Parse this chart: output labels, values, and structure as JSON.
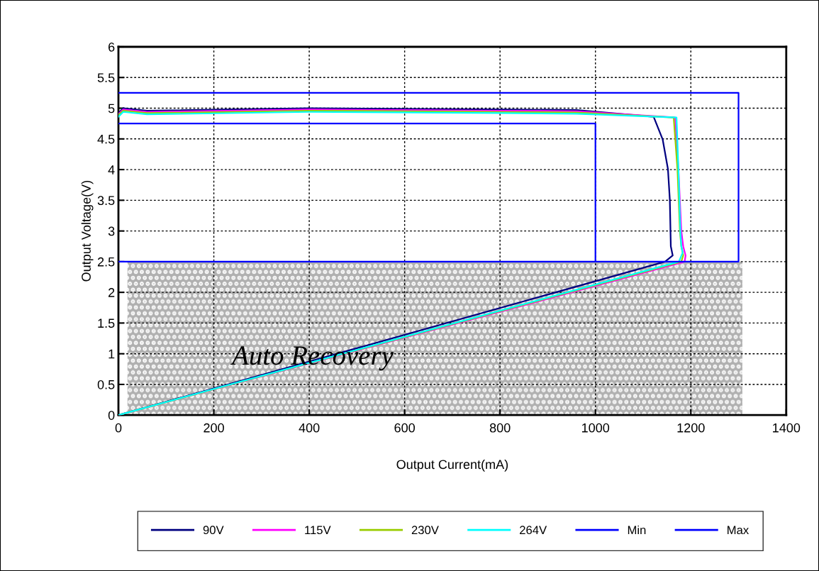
{
  "chart_data": {
    "type": "line",
    "xlabel": "Output Current(mA)",
    "ylabel": "Output Voltage(V)",
    "xlim": [
      0,
      1400
    ],
    "xticks": [
      0,
      200,
      400,
      600,
      800,
      1000,
      1200,
      1400
    ],
    "ylim": [
      0,
      6
    ],
    "yticks": [
      0,
      0.5,
      1,
      1.5,
      2,
      2.5,
      3,
      3.5,
      4,
      4.5,
      5,
      5.5,
      6
    ],
    "grid": true,
    "legend": "bottom",
    "line_style": "solid",
    "marker": "none",
    "annotations": [
      "Auto Recovery"
    ],
    "series": [
      {
        "type": "area",
        "color": "#b0b0b0",
        "x": [
          19,
          1308
        ],
        "values": [
          2.5,
          2.5
        ]
      },
      {
        "name": "90V",
        "color": "#000080",
        "x": [
          0,
          10,
          60,
          400,
          800,
          960,
          1122,
          1141,
          1152,
          1156,
          1158,
          1162,
          1146,
          0
        ],
        "values": [
          4.92,
          5.0,
          4.96,
          5.0,
          4.98,
          4.97,
          4.86,
          4.49,
          4.01,
          3.5,
          2.75,
          2.6,
          2.5,
          0
        ]
      },
      {
        "name": "115V",
        "color": "#ff00ff",
        "x": [
          0,
          10,
          60,
          400,
          800,
          960,
          1167,
          1174,
          1180,
          1184,
          1189,
          1187,
          0
        ],
        "values": [
          4.9,
          4.98,
          4.94,
          4.98,
          4.96,
          4.95,
          4.85,
          4.0,
          3.0,
          2.75,
          2.6,
          2.5,
          0
        ]
      },
      {
        "name": "230V",
        "color": "#99cc00",
        "x": [
          0,
          10,
          60,
          400,
          800,
          960,
          1164,
          1172,
          1177,
          1180,
          1184,
          1180,
          0
        ],
        "values": [
          4.89,
          4.96,
          4.92,
          4.96,
          4.94,
          4.93,
          4.85,
          4.0,
          3.0,
          2.75,
          2.6,
          2.5,
          0
        ]
      },
      {
        "name": "264V",
        "color": "#00ffff",
        "x": [
          0,
          10,
          60,
          400,
          800,
          960,
          1170,
          1174,
          1178,
          1180,
          1183,
          1175,
          0
        ],
        "values": [
          4.86,
          4.94,
          4.9,
          4.94,
          4.92,
          4.91,
          4.85,
          4.0,
          3.0,
          2.75,
          2.65,
          2.5,
          0
        ]
      },
      {
        "name": "Min",
        "color": "#0000ff",
        "x": [
          0,
          1000,
          1000
        ],
        "values": [
          4.75,
          4.75,
          2.5
        ]
      },
      {
        "name": "Max",
        "color": "#0000ff",
        "x": [
          0,
          1300,
          1300,
          0
        ],
        "values": [
          5.25,
          5.25,
          2.5,
          2.5
        ]
      }
    ]
  }
}
